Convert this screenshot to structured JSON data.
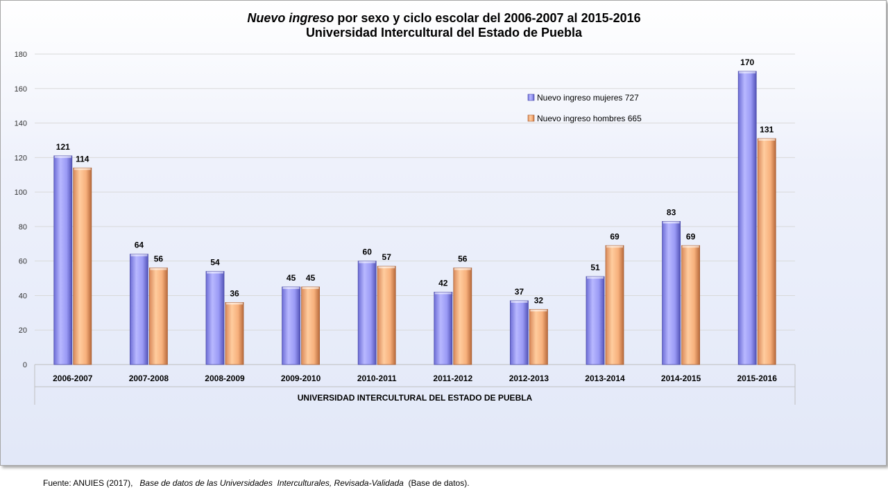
{
  "title": {
    "line1_italic": "Nuevo ingreso",
    "line1_rest": "  por sexo  y ciclo escolar del 2006-2007 al 2015-2016",
    "line2": "Universidad Intercultural del Estado de Puebla"
  },
  "source": {
    "prefix": "Fuente: ANUIES (2017),   ",
    "italic": "Base de datos de las Universidades  Interculturales, Revisada-Validada",
    "suffix": "  (Base de datos)."
  },
  "colors": {
    "mujeres": "#9999ff",
    "hombres": "#ffb27a",
    "grid": "#d9d9d9"
  },
  "chart_data": {
    "type": "bar",
    "title": "Nuevo ingreso  por sexo  y ciclo escolar del 2006-2007 al 2015-2016 Universidad Intercultural del Estado de Puebla",
    "xlabel": "UNIVERSIDAD INTERCULTURAL DEL ESTADO DE PUEBLA",
    "ylabel": "",
    "ylim": [
      0,
      180
    ],
    "yticks": [
      0,
      20,
      40,
      60,
      80,
      100,
      120,
      140,
      160,
      180
    ],
    "grid": true,
    "legend_position": "top-right",
    "categories": [
      "2006-2007",
      "2007-2008",
      "2008-2009",
      "2009-2010",
      "2010-2011",
      "2011-2012",
      "2012-2013",
      "2013-2014",
      "2014-2015",
      "2015-2016"
    ],
    "series": [
      {
        "name": "Nuevo ingreso mujeres 727",
        "values": [
          121,
          64,
          54,
          45,
          60,
          42,
          37,
          51,
          83,
          170
        ]
      },
      {
        "name": "Nuevo ingreso hombres 665",
        "values": [
          114,
          56,
          36,
          45,
          57,
          56,
          32,
          69,
          69,
          131
        ]
      }
    ]
  }
}
